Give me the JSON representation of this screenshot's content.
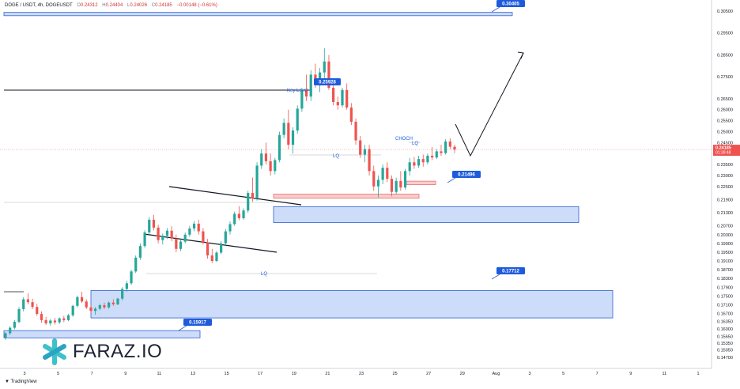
{
  "header": {
    "symbol": "DOGE / USDT, 4h, DOGEUSDT",
    "o_label": "O",
    "o_value": "0.24312",
    "h_label": "H",
    "h_value": "0.24404",
    "l_label": "L",
    "l_value": "0.24026",
    "c_label": "C",
    "c_value": "0.24185",
    "change": "−0.00148 (−0.61%)"
  },
  "footer": {
    "tradingview": "TradingView"
  },
  "brand": {
    "name": "FARAZ.IO",
    "icon": "asterisk-logo-icon"
  },
  "colors": {
    "up": "#26a69a",
    "down": "#ef5350",
    "zone_blue": "#bcd0f7",
    "zone_red": "#f9c7c7",
    "label_blue": "#1e5bdc"
  },
  "chart_data": {
    "type": "candlestick",
    "title": "",
    "y_axis_side": "right",
    "y_ticks": [
      "0.30500",
      "0.29500",
      "0.28500",
      "0.27500",
      "0.26500",
      "0.26000",
      "0.25500",
      "0.25000",
      "0.24500",
      "0.23500",
      "0.23000",
      "0.22500",
      "0.21900",
      "0.21300",
      "0.20700",
      "0.20300",
      "0.19900",
      "0.19500",
      "0.19100",
      "0.18700",
      "0.18300",
      "0.17900",
      "0.17500",
      "0.17100",
      "0.16700",
      "0.16350",
      "0.16000",
      "0.15650",
      "0.15350",
      "0.15050",
      "0.14700"
    ],
    "x_ticks": [
      "3",
      "5",
      "7",
      "9",
      "11",
      "13",
      "15",
      "17",
      "19",
      "21",
      "23",
      "25",
      "27",
      "29",
      "Aug",
      "3",
      "5",
      "7",
      "9",
      "11",
      "1"
    ],
    "price_tag": {
      "value": "0.24185",
      "countdown": "01:39:48"
    },
    "zones": [
      {
        "kind": "blue",
        "label": "0.30405",
        "from": 0.3029,
        "to": 0.3044
      },
      {
        "kind": "blue",
        "label": "0.21496",
        "from": 0.2085,
        "to": 0.2158
      },
      {
        "kind": "blue",
        "label": "0.17712",
        "from": 0.165,
        "to": 0.1775
      },
      {
        "kind": "blue",
        "label": "0.15917",
        "from": 0.1559,
        "to": 0.1592
      },
      {
        "kind": "red",
        "label": "",
        "from": 0.2196,
        "to": 0.2215
      },
      {
        "kind": "red",
        "label": "",
        "from": 0.2258,
        "to": 0.2274
      }
    ],
    "annotations": {
      "key_level_text": "Key Level",
      "key_level_value": "0.25928",
      "lq_labels": [
        "LQ",
        "LQ",
        "LQ"
      ],
      "choch_text": "CHOCH"
    },
    "candles": [
      [
        0.156,
        0.1585,
        0.155,
        0.158
      ],
      [
        0.158,
        0.1612,
        0.1572,
        0.1605
      ],
      [
        0.1605,
        0.164,
        0.1598,
        0.1632
      ],
      [
        0.1632,
        0.17,
        0.1625,
        0.169
      ],
      [
        0.169,
        0.1745,
        0.168,
        0.1735
      ],
      [
        0.1735,
        0.1762,
        0.1712,
        0.1722
      ],
      [
        0.1722,
        0.1738,
        0.169,
        0.17
      ],
      [
        0.17,
        0.1715,
        0.166,
        0.1668
      ],
      [
        0.1668,
        0.168,
        0.1628,
        0.164
      ],
      [
        0.164,
        0.1655,
        0.1618,
        0.1625
      ],
      [
        0.1625,
        0.1645,
        0.1615,
        0.1638
      ],
      [
        0.1638,
        0.165,
        0.162,
        0.163
      ],
      [
        0.163,
        0.1652,
        0.1622,
        0.1648
      ],
      [
        0.1648,
        0.166,
        0.163,
        0.164
      ],
      [
        0.164,
        0.1668,
        0.1635,
        0.1662
      ],
      [
        0.1662,
        0.171,
        0.1655,
        0.1705
      ],
      [
        0.1705,
        0.1752,
        0.1698,
        0.1745
      ],
      [
        0.1745,
        0.177,
        0.1718,
        0.1725
      ],
      [
        0.1725,
        0.1735,
        0.169,
        0.1698
      ],
      [
        0.1698,
        0.171,
        0.167,
        0.1682
      ],
      [
        0.1682,
        0.17,
        0.1665,
        0.1692
      ],
      [
        0.1692,
        0.1715,
        0.1685,
        0.1708
      ],
      [
        0.1708,
        0.172,
        0.169,
        0.1698
      ],
      [
        0.1698,
        0.1725,
        0.1692,
        0.172
      ],
      [
        0.172,
        0.1735,
        0.1705,
        0.1712
      ],
      [
        0.1712,
        0.1742,
        0.1708,
        0.1738
      ],
      [
        0.1738,
        0.179,
        0.173,
        0.1782
      ],
      [
        0.1782,
        0.182,
        0.177,
        0.1808
      ],
      [
        0.1808,
        0.187,
        0.18,
        0.1862
      ],
      [
        0.1862,
        0.1935,
        0.1855,
        0.1925
      ],
      [
        0.1925,
        0.199,
        0.1915,
        0.1978
      ],
      [
        0.1978,
        0.205,
        0.197,
        0.204
      ],
      [
        0.204,
        0.211,
        0.203,
        0.2098
      ],
      [
        0.2098,
        0.212,
        0.205,
        0.2062
      ],
      [
        0.2062,
        0.2075,
        0.199,
        0.2005
      ],
      [
        0.2005,
        0.2035,
        0.1985,
        0.2025
      ],
      [
        0.2025,
        0.206,
        0.201,
        0.2048
      ],
      [
        0.2048,
        0.2068,
        0.2,
        0.2012
      ],
      [
        0.2012,
        0.203,
        0.195,
        0.1965
      ],
      [
        0.1965,
        0.201,
        0.1955,
        0.1998
      ],
      [
        0.1998,
        0.204,
        0.199,
        0.203
      ],
      [
        0.203,
        0.207,
        0.202,
        0.2058
      ],
      [
        0.2058,
        0.2092,
        0.2045,
        0.208
      ],
      [
        0.208,
        0.2098,
        0.203,
        0.2045
      ],
      [
        0.2045,
        0.206,
        0.1985,
        0.1995
      ],
      [
        0.1995,
        0.201,
        0.192,
        0.1935
      ],
      [
        0.1935,
        0.1965,
        0.19,
        0.191
      ],
      [
        0.191,
        0.1955,
        0.1905,
        0.1948
      ],
      [
        0.1948,
        0.2,
        0.194,
        0.199
      ],
      [
        0.199,
        0.2055,
        0.198,
        0.2045
      ],
      [
        0.2045,
        0.209,
        0.203,
        0.2078
      ],
      [
        0.2078,
        0.2135,
        0.207,
        0.2125
      ],
      [
        0.2125,
        0.216,
        0.2095,
        0.2105
      ],
      [
        0.2105,
        0.215,
        0.2098,
        0.214
      ],
      [
        0.214,
        0.223,
        0.213,
        0.222
      ],
      [
        0.222,
        0.229,
        0.218,
        0.2195
      ],
      [
        0.2195,
        0.236,
        0.2185,
        0.2345
      ],
      [
        0.2345,
        0.242,
        0.233,
        0.24
      ],
      [
        0.24,
        0.245,
        0.235,
        0.2365
      ],
      [
        0.2365,
        0.24,
        0.23,
        0.232
      ],
      [
        0.232,
        0.238,
        0.2305,
        0.237
      ],
      [
        0.237,
        0.25,
        0.236,
        0.2485
      ],
      [
        0.2485,
        0.256,
        0.247,
        0.254
      ],
      [
        0.254,
        0.26,
        0.242,
        0.244
      ],
      [
        0.244,
        0.252,
        0.24,
        0.2505
      ],
      [
        0.2505,
        0.262,
        0.249,
        0.2605
      ],
      [
        0.2605,
        0.27,
        0.259,
        0.269
      ],
      [
        0.269,
        0.276,
        0.264,
        0.266
      ],
      [
        0.266,
        0.278,
        0.264,
        0.276
      ],
      [
        0.276,
        0.281,
        0.27,
        0.272
      ],
      [
        0.272,
        0.279,
        0.268,
        0.277
      ],
      [
        0.277,
        0.288,
        0.274,
        0.282
      ],
      [
        0.282,
        0.285,
        0.269,
        0.27
      ],
      [
        0.27,
        0.272,
        0.262,
        0.2635
      ],
      [
        0.2635,
        0.266,
        0.26,
        0.262
      ],
      [
        0.262,
        0.27,
        0.261,
        0.269
      ],
      [
        0.269,
        0.272,
        0.26,
        0.261
      ],
      [
        0.261,
        0.263,
        0.253,
        0.2545
      ],
      [
        0.2545,
        0.256,
        0.244,
        0.246
      ],
      [
        0.246,
        0.248,
        0.238,
        0.2395
      ],
      [
        0.2395,
        0.244,
        0.236,
        0.242
      ],
      [
        0.242,
        0.244,
        0.23,
        0.232
      ],
      [
        0.232,
        0.2345,
        0.223,
        0.225
      ],
      [
        0.225,
        0.23,
        0.22,
        0.228
      ],
      [
        0.228,
        0.235,
        0.226,
        0.2335
      ],
      [
        0.2335,
        0.236,
        0.227,
        0.2285
      ],
      [
        0.2285,
        0.23,
        0.2205,
        0.2225
      ],
      [
        0.2225,
        0.229,
        0.2215,
        0.2275
      ],
      [
        0.2275,
        0.232,
        0.223,
        0.2245
      ],
      [
        0.2245,
        0.233,
        0.2235,
        0.232
      ],
      [
        0.232,
        0.238,
        0.23,
        0.236
      ],
      [
        0.236,
        0.2385,
        0.233,
        0.2345
      ],
      [
        0.2345,
        0.239,
        0.2335,
        0.2375
      ],
      [
        0.2375,
        0.2395,
        0.234,
        0.236
      ],
      [
        0.236,
        0.24,
        0.235,
        0.239
      ],
      [
        0.239,
        0.243,
        0.237,
        0.2382
      ],
      [
        0.2382,
        0.242,
        0.2375,
        0.241
      ],
      [
        0.241,
        0.244,
        0.239,
        0.2402
      ],
      [
        0.2402,
        0.2465,
        0.2395,
        0.2455
      ],
      [
        0.2455,
        0.247,
        0.242,
        0.2431
      ],
      [
        0.2431,
        0.244,
        0.2402,
        0.2418
      ]
    ]
  }
}
